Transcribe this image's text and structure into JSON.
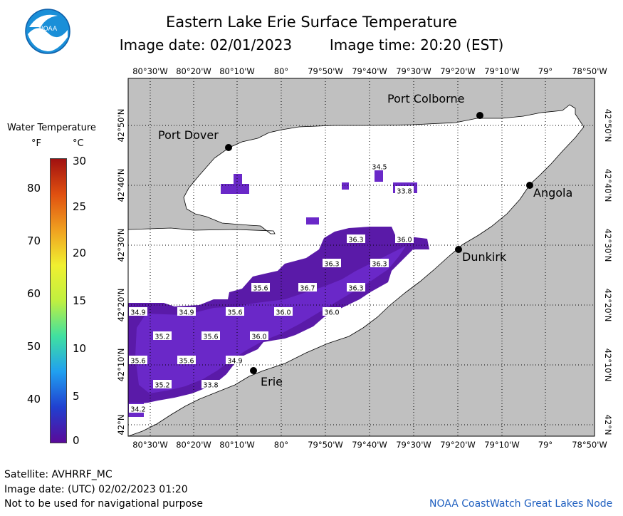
{
  "header": {
    "title": "Eastern Lake Erie Surface Temperature",
    "date_label": "Image date: 02/01/2023",
    "time_label": "Image time: 20:20 (EST)"
  },
  "logo": {
    "text": "NOAA",
    "icon": "noaa-logo"
  },
  "axes": {
    "longitude_labels": [
      "80°30'W",
      "80°20'W",
      "80°10'W",
      "80°",
      "79°50'W",
      "79°40'W",
      "79°30'W",
      "79°20'W",
      "79°10'W",
      "79°",
      "78°50'W"
    ],
    "latitude_labels": [
      "42°50'N",
      "42°40'N",
      "42°30'N",
      "42°20'N",
      "42°10'N",
      "42°N"
    ]
  },
  "cities": [
    {
      "name": "Port Colborne"
    },
    {
      "name": "Port Dover"
    },
    {
      "name": "Angola"
    },
    {
      "name": "Dunkirk"
    },
    {
      "name": "Erie"
    }
  ],
  "temperature_labels": [
    "34.5",
    "33.8",
    "36.3",
    "36.0",
    "36.3",
    "36.3",
    "35.6",
    "36.7",
    "36.3",
    "34.9",
    "34.9",
    "35.6",
    "36.0",
    "36.0",
    "35.2",
    "35.6",
    "36.0",
    "35.6",
    "35.6",
    "34.9",
    "35.2",
    "33.8",
    "34.2"
  ],
  "legend": {
    "title": "Water Temperature",
    "unit_f": "°F",
    "unit_c": "°C",
    "fahrenheit_ticks": [
      "80",
      "70",
      "60",
      "50",
      "40"
    ],
    "celsius_ticks": [
      "30",
      "25",
      "20",
      "15",
      "10",
      "5",
      "0"
    ],
    "colors": [
      "#5a0a9a",
      "#2040d0",
      "#20a0f0",
      "#40e0a0",
      "#c0f040",
      "#f0f030",
      "#f0a020",
      "#e05010",
      "#a01010"
    ]
  },
  "footer": {
    "satellite": "Satellite: AVHRRF_MC",
    "utc_date": "Image date: (UTC) 02/02/2023  01:20",
    "disclaimer": "Not to be used for navigational purpose",
    "credit": "NOAA CoastWatch Great Lakes Node"
  }
}
